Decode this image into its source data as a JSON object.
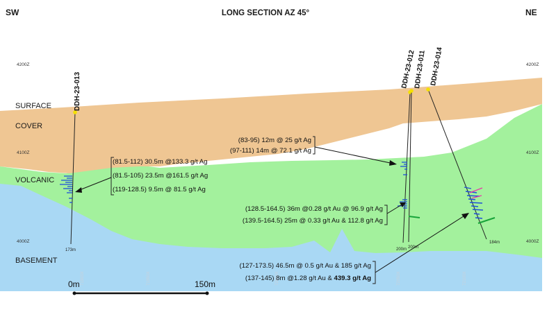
{
  "figure": {
    "title": "LONG SECTION AZ 45°",
    "corner_left": "SW",
    "corner_right": "NE",
    "elevations_left": [
      "4200Z",
      "4100Z",
      "4000Z"
    ],
    "elevations_right": [
      "4200Z",
      "4100Z",
      "4000Z"
    ],
    "layers": {
      "surface": "SURFACE",
      "cover": "COVER",
      "volcanic": "VOLCANIC",
      "basement": "BASEMENT"
    },
    "colors": {
      "cover": "#efc693",
      "volcanic": "#a3f19d",
      "basement": "#a9d8f4",
      "collar": "#f5e000",
      "assay_blue": "#1f4fd8",
      "assay_magenta": "#e83aa8",
      "assay_green": "#17a33a"
    },
    "holes": [
      {
        "id": "DDH-23-013",
        "depth": "173m"
      },
      {
        "id": "DDH-23-012",
        "depth": "200m"
      },
      {
        "id": "DDH-23-011",
        "depth": "200m"
      },
      {
        "id": "DDH-23-014",
        "depth": "184m"
      }
    ],
    "annotations": {
      "hole013": [
        "(81.5-112) 30.5m @133.3 g/t Ag",
        "(81.5-105) 23.5m @161.5 g/t Ag",
        "(119-128.5) 9.5m @ 81.5 g/t Ag"
      ],
      "hole011_upper": [
        "(83-95) 12m @ 25 g/t Ag",
        "(97-111) 14m @ 72.1 g/t Ag"
      ],
      "hole011_lower": [
        "(128.5-164.5) 36m @0.28 g/t Au @ 96.9 g/t Ag",
        "(139.5-164.5) 25m @ 0.33 g/t Au & 112.8 g/t Ag"
      ],
      "hole014": {
        "line1": "(127-173.5) 46.5m @ 0.5 g/t Au & 185 g/t  Ag",
        "line2_prefix": "(137-145) 8m @1.28 g/t Au & ",
        "line2_bold": "439.3 g/t Ag"
      }
    },
    "scale_bar": {
      "start": "0m",
      "end": "150m"
    }
  }
}
